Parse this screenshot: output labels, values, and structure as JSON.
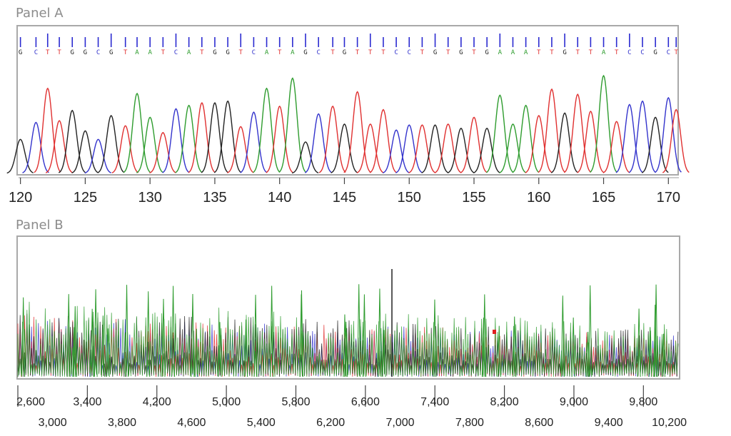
{
  "panels": {
    "a": {
      "label": "Panel A"
    },
    "b": {
      "label": "Panel B"
    }
  },
  "colors": {
    "A": "#2e9c2e",
    "C": "#3333cc",
    "G": "#222222",
    "T": "#e03030",
    "frame": "#a9a9a9",
    "label": "#8c8c8c"
  },
  "chart_data": [
    {
      "type": "line",
      "panel": "Panel A",
      "bases": [
        "G",
        "C",
        "T",
        "T",
        "G",
        "G",
        "C",
        "G",
        "T",
        "A",
        "A",
        "T",
        "C",
        "A",
        "T",
        "G",
        "G",
        "T",
        "C",
        "A",
        "T",
        "A",
        "G",
        "C",
        "T",
        "G",
        "T",
        "T",
        "T",
        "C",
        "C",
        "T",
        "G",
        "T",
        "G",
        "T",
        "G",
        "A",
        "A",
        "A",
        "T",
        "T",
        "G",
        "T",
        "T",
        "A",
        "T",
        "C",
        "C",
        "G",
        "C",
        "T"
      ],
      "peak_positions": [
        120.0,
        121.2,
        122.1,
        123.0,
        124.0,
        125.0,
        126.0,
        127.0,
        128.1,
        129.0,
        130.0,
        131.0,
        132.0,
        133.0,
        134.0,
        135.0,
        136.0,
        137.0,
        138.0,
        139.0,
        140.0,
        141.0,
        142.0,
        143.0,
        144.1,
        145.0,
        146.0,
        147.0,
        148.0,
        149.0,
        150.0,
        151.0,
        152.0,
        153.0,
        154.0,
        155.0,
        156.0,
        157.0,
        158.0,
        159.0,
        160.0,
        161.0,
        162.0,
        163.0,
        164.0,
        165.0,
        166.0,
        167.0,
        168.0,
        169.0,
        170.0,
        170.6
      ],
      "peak_heights": [
        0.4,
        0.6,
        1.0,
        0.62,
        0.74,
        0.5,
        0.4,
        0.68,
        0.56,
        0.94,
        0.66,
        0.48,
        0.76,
        0.8,
        0.83,
        0.83,
        0.85,
        0.55,
        0.72,
        1.0,
        0.79,
        1.12,
        0.37,
        0.7,
        0.79,
        0.58,
        0.96,
        0.58,
        0.75,
        0.51,
        0.57,
        0.57,
        0.57,
        0.58,
        0.53,
        0.66,
        0.53,
        0.92,
        0.58,
        0.8,
        0.68,
        0.99,
        0.71,
        0.93,
        0.73,
        1.15,
        0.61,
        0.81,
        0.85,
        0.66,
        0.89,
        0.75
      ],
      "x_ticks": [
        "120",
        "125",
        "130",
        "135",
        "140",
        "145",
        "150",
        "155",
        "160",
        "165",
        "170"
      ],
      "xlim": [
        119.8,
        170.7
      ],
      "ylim": [
        0,
        1.2
      ]
    },
    {
      "type": "line",
      "panel": "Panel B",
      "description_level": "dense overlapping four-color trace (G, A, T, C) across the full read",
      "x_ticks_upper": [
        "2,600",
        "3,400",
        "4,200",
        "5,000",
        "5,800",
        "6,600",
        "7,400",
        "8,200",
        "9,000",
        "9,800"
      ],
      "x_ticks_lower": [
        "3,000",
        "3,800",
        "4,600",
        "5,400",
        "6,200",
        "7,000",
        "7,800",
        "8,600",
        "9,400",
        "10,200"
      ],
      "xlim": [
        2600,
        10200
      ]
    }
  ]
}
